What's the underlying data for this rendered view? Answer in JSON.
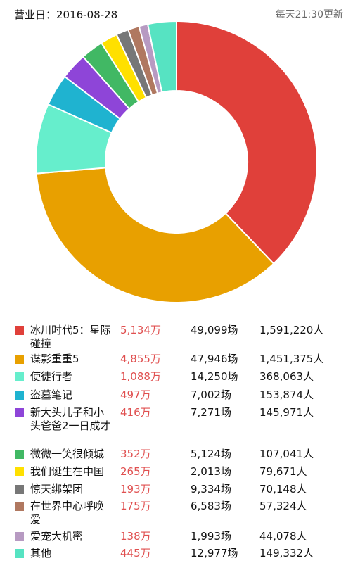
{
  "header": {
    "date_label": "营业日：2016-08-28",
    "update_label": "每天21:30更新"
  },
  "chart_data": {
    "type": "pie",
    "style": "donut",
    "start_angle": "12 o'clock",
    "direction": "clockwise",
    "slices": [
      {
        "name": "冰川时代5：星际碰撞",
        "value": 5134,
        "color": "#e0403a"
      },
      {
        "name": "谍影重重5",
        "value": 4855,
        "color": "#e8a000"
      },
      {
        "name": "使徒行者",
        "value": 1088,
        "color": "#66eecc"
      },
      {
        "name": "盗墓笔记",
        "value": 497,
        "color": "#1fb3d0"
      },
      {
        "name": "新大头儿子和小头爸爸2一日成才",
        "value": 416,
        "color": "#8e45d8"
      },
      {
        "name": "微微一笑很倾城",
        "value": 352,
        "color": "#41b864"
      },
      {
        "name": "我们诞生在中国",
        "value": 265,
        "color": "#ffe000"
      },
      {
        "name": "惊天绑架团",
        "value": 193,
        "color": "#777777"
      },
      {
        "name": "在世界中心呼唤爱",
        "value": 175,
        "color": "#b07860"
      },
      {
        "name": "爱宠大机密",
        "value": 138,
        "color": "#b79ac2"
      },
      {
        "name": "其他",
        "value": 445,
        "color": "#56e3c2"
      }
    ]
  },
  "legend": [
    {
      "name": "冰川时代5：星际碰撞",
      "boxoffice": "5,134万",
      "shows": "49,099场",
      "people": "1,591,220人"
    },
    {
      "name": "谍影重重5",
      "boxoffice": "4,855万",
      "shows": "47,946场",
      "people": "1,451,375人"
    },
    {
      "name": "使徒行者",
      "boxoffice": "1,088万",
      "shows": "14,250场",
      "people": "368,063人"
    },
    {
      "name": "盗墓笔记",
      "boxoffice": "497万",
      "shows": "7,002场",
      "people": "153,874人"
    },
    {
      "name": "新大头儿子和小头爸爸2一日成才",
      "boxoffice": "416万",
      "shows": "7,271场",
      "people": "145,971人"
    },
    {
      "name": "微微一笑很倾城",
      "boxoffice": "352万",
      "shows": "5,124场",
      "people": "107,041人"
    },
    {
      "name": "我们诞生在中国",
      "boxoffice": "265万",
      "shows": "2,013场",
      "people": "79,671人"
    },
    {
      "name": "惊天绑架团",
      "boxoffice": "193万",
      "shows": "9,334场",
      "people": "70,148人"
    },
    {
      "name": "在世界中心呼唤爱",
      "boxoffice": "175万",
      "shows": "6,583场",
      "people": "57,324人"
    },
    {
      "name": "爱宠大机密",
      "boxoffice": "138万",
      "shows": "1,993场",
      "people": "44,078人"
    },
    {
      "name": "其他",
      "boxoffice": "445万",
      "shows": "12,977场",
      "people": "149,332人"
    }
  ]
}
